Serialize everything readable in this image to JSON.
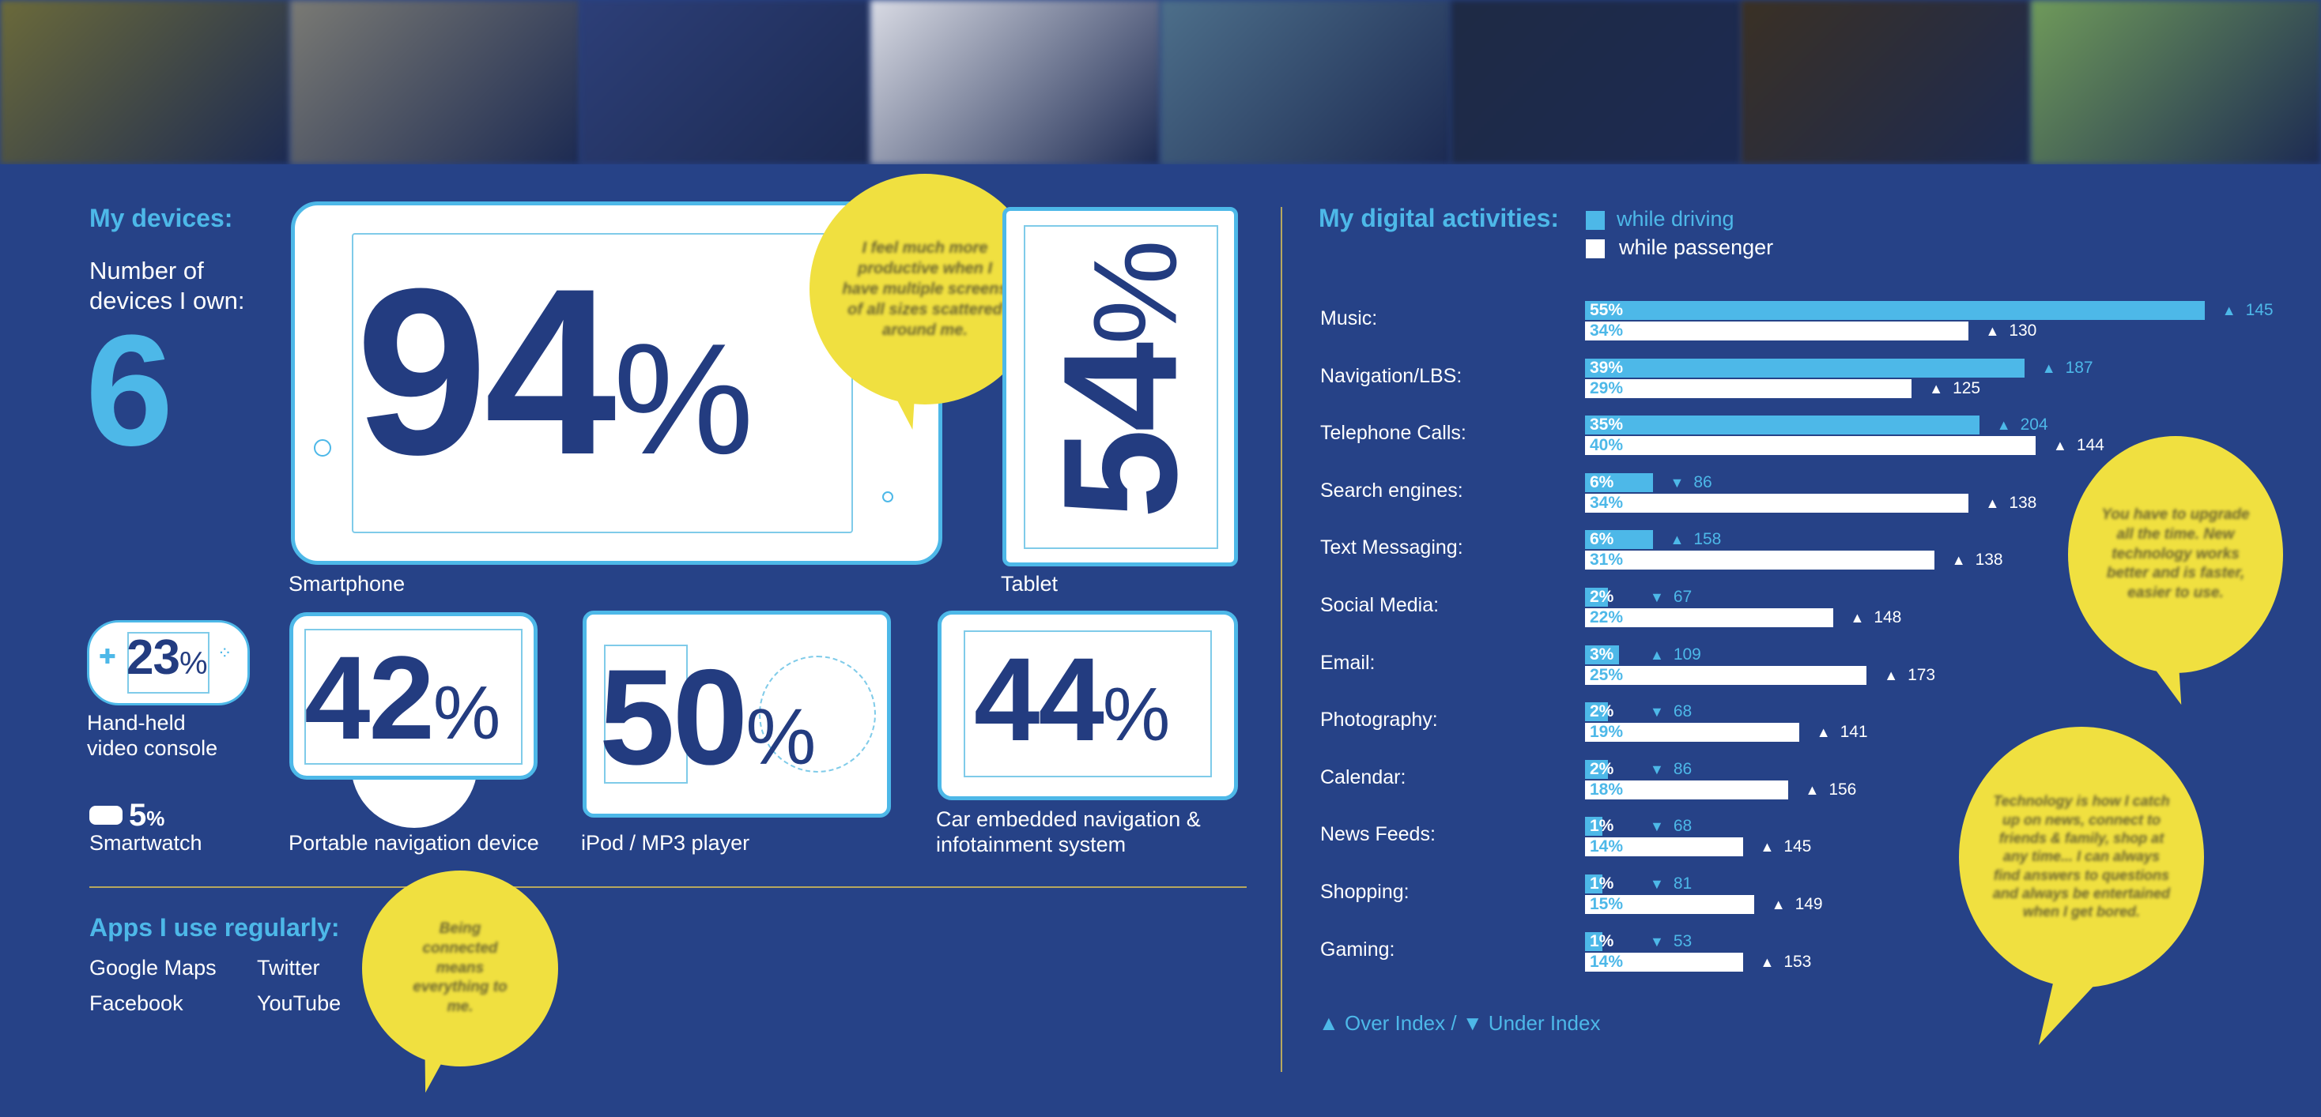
{
  "header_photos": [
    {
      "name": "office-desk-photo",
      "color": "#6b6a3a"
    },
    {
      "name": "laptop-photo",
      "color": "#7a7a74"
    },
    {
      "name": "screen-photo",
      "color": "#2d3f78"
    },
    {
      "name": "pattern-photo",
      "color": "#d9dbe4"
    },
    {
      "name": "portrait-photo",
      "color": "#4d6f8a"
    },
    {
      "name": "night-photo",
      "color": "#1e2a44"
    },
    {
      "name": "room-photo",
      "color": "#3a3024"
    },
    {
      "name": "landscape-photo",
      "color": "#6f9a5a"
    }
  ],
  "devices": {
    "title": "My devices:",
    "count_label": "Number of devices I own:",
    "count_line1": "Number of",
    "count_line2": "devices I own:",
    "count": "6",
    "smartphone": {
      "value": "94",
      "unit": "%",
      "label": "Smartphone"
    },
    "tablet": {
      "value": "54",
      "unit": "%",
      "label": "Tablet"
    },
    "console": {
      "value": "23",
      "unit": "%",
      "label_line1": "Hand-held",
      "label_line2": "video console"
    },
    "smartwatch": {
      "value": "5",
      "unit": "%",
      "label": "Smartwatch"
    },
    "navigation": {
      "value": "42",
      "unit": "%",
      "label": "Portable navigation device"
    },
    "ipod": {
      "value": "50",
      "unit": "%",
      "label": "iPod / MP3 player"
    },
    "car": {
      "value": "44",
      "unit": "%",
      "label_line1": "Car embedded navigation &",
      "label_line2": "infotainment system"
    },
    "quote": "I feel much more productive when I have multiple screens of all sizes scattered around me."
  },
  "apps": {
    "title": "Apps I use regularly:",
    "items": [
      "Google Maps",
      "Twitter",
      "Facebook",
      "YouTube"
    ],
    "quote": "Being connected means everything to me."
  },
  "activities": {
    "title": "My digital activities:",
    "legend_driving": "while driving",
    "legend_passenger": "while passenger",
    "color_driving": "#4db8e8",
    "color_passenger": "#ffffff",
    "footer_over": "Over Index /",
    "footer_under": "Under Index",
    "rows": [
      {
        "label": "Music:",
        "driving": 55,
        "driving_label": "55%",
        "driving_dir": "up",
        "driving_index": "145",
        "passenger": 34,
        "passenger_label": "34%",
        "passenger_dir": "up",
        "passenger_index": "130"
      },
      {
        "label": "Navigation/LBS:",
        "driving": 39,
        "driving_label": "39%",
        "driving_dir": "up",
        "driving_index": "187",
        "passenger": 29,
        "passenger_label": "29%",
        "passenger_dir": "up",
        "passenger_index": "125"
      },
      {
        "label": "Telephone Calls:",
        "driving": 35,
        "driving_label": "35%",
        "driving_dir": "up",
        "driving_index": "204",
        "passenger": 40,
        "passenger_label": "40%",
        "passenger_dir": "up",
        "passenger_index": "144"
      },
      {
        "label": "Search engines:",
        "driving": 6,
        "driving_label": "6%",
        "driving_dir": "down",
        "driving_index": "86",
        "passenger": 34,
        "passenger_label": "34%",
        "passenger_dir": "up",
        "passenger_index": "138"
      },
      {
        "label": "Text Messaging:",
        "driving": 6,
        "driving_label": "6%",
        "driving_dir": "up",
        "driving_index": "158",
        "passenger": 31,
        "passenger_label": "31%",
        "passenger_dir": "up",
        "passenger_index": "138"
      },
      {
        "label": "Social Media:",
        "driving": 2,
        "driving_label": "2%",
        "driving_dir": "down",
        "driving_index": "67",
        "passenger": 22,
        "passenger_label": "22%",
        "passenger_dir": "up",
        "passenger_index": "148"
      },
      {
        "label": "Email:",
        "driving": 3,
        "driving_label": "3%",
        "driving_dir": "up",
        "driving_index": "109",
        "passenger": 25,
        "passenger_label": "25%",
        "passenger_dir": "up",
        "passenger_index": "173"
      },
      {
        "label": "Photography:",
        "driving": 2,
        "driving_label": "2%",
        "driving_dir": "down",
        "driving_index": "68",
        "passenger": 19,
        "passenger_label": "19%",
        "passenger_dir": "up",
        "passenger_index": "141"
      },
      {
        "label": "Calendar:",
        "driving": 2,
        "driving_label": "2%",
        "driving_dir": "down",
        "driving_index": "86",
        "passenger": 18,
        "passenger_label": "18%",
        "passenger_dir": "up",
        "passenger_index": "156"
      },
      {
        "label": "News Feeds:",
        "driving": 1,
        "driving_label": "1%",
        "driving_dir": "down",
        "driving_index": "68",
        "passenger": 14,
        "passenger_label": "14%",
        "passenger_dir": "up",
        "passenger_index": "145"
      },
      {
        "label": "Shopping:",
        "driving": 1,
        "driving_label": "1%",
        "driving_dir": "down",
        "driving_index": "81",
        "passenger": 15,
        "passenger_label": "15%",
        "passenger_dir": "up",
        "passenger_index": "149"
      },
      {
        "label": "Gaming:",
        "driving": 1,
        "driving_label": "1%",
        "driving_dir": "down",
        "driving_index": "53",
        "passenger": 14,
        "passenger_label": "14%",
        "passenger_dir": "up",
        "passenger_index": "153"
      }
    ],
    "quote_upgrade": "You have to upgrade all the time. New technology works better and is faster, easier to use.",
    "quote_technology": "Technology is how I catch up on news, connect to friends & family, shop at any time... I can always find answers to questions and always be entertained when I get bored."
  }
}
